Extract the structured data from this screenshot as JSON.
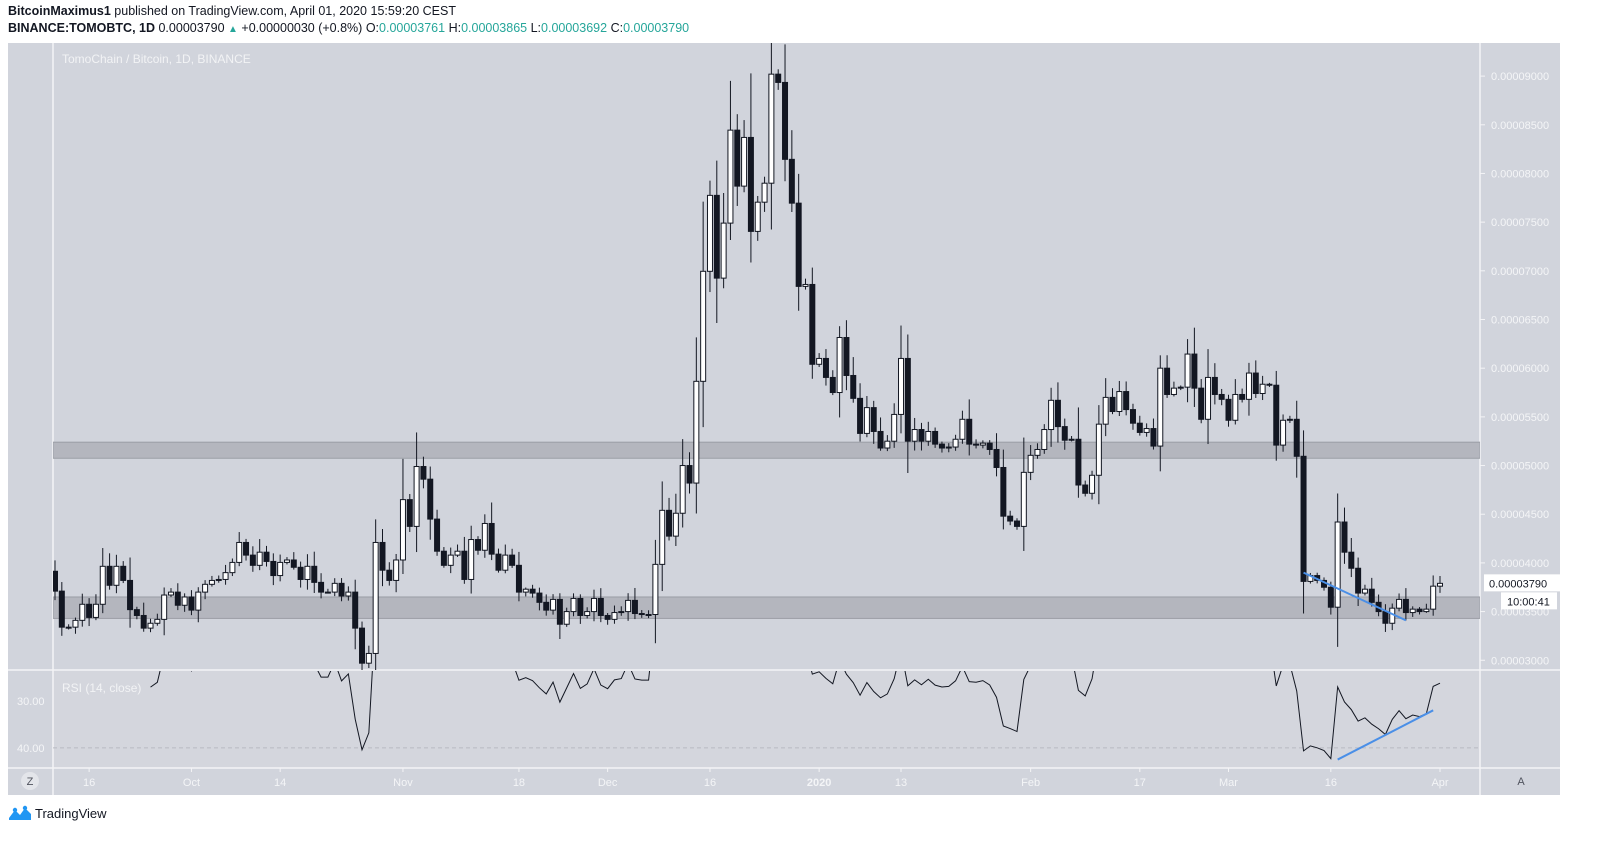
{
  "header": {
    "author": "BitcoinMaximus1",
    "published": "published on TradingView.com, April 01, 2020 15:59:20 CEST",
    "symbol": "BINANCE:TOMOBTC, 1D",
    "last": "0.00003790",
    "change": "+0.00000030 (+0.8%)",
    "change_direction": "up",
    "o_label": "O:",
    "o": "0.00003761",
    "h_label": "H:",
    "h": "0.00003865",
    "l_label": "L:",
    "l": "0.00003692",
    "c_label": "C:",
    "c": "0.00003790"
  },
  "watermark": "TomoChain / Bitcoin, 1D, BINANCE",
  "price_axis": {
    "ticks": [
      "0.00009000",
      "0.00008500",
      "0.00008000",
      "0.00007500",
      "0.00007000",
      "0.00006500",
      "0.00006000",
      "0.00005500",
      "0.00005000",
      "0.00004500",
      "0.00004000",
      "0.00003500",
      "0.00003000"
    ],
    "current_price_label": "0.00003790",
    "countdown": "10:00:41"
  },
  "rsi": {
    "label": "RSI (14, close)",
    "ticks": [
      "40.00",
      "30.00"
    ]
  },
  "time_axis": {
    "ticks": [
      {
        "label": "16",
        "date": "2019-09-16"
      },
      {
        "label": "Oct",
        "date": "2019-10-01"
      },
      {
        "label": "14",
        "date": "2019-10-14"
      },
      {
        "label": "Nov",
        "date": "2019-11-01"
      },
      {
        "label": "18",
        "date": "2019-11-18"
      },
      {
        "label": "Dec",
        "date": "2019-12-01"
      },
      {
        "label": "16",
        "date": "2019-12-16"
      },
      {
        "label": "2020",
        "date": "2020-01-01"
      },
      {
        "label": "13",
        "date": "2020-01-13"
      },
      {
        "label": "Feb",
        "date": "2020-02-01"
      },
      {
        "label": "17",
        "date": "2020-02-17"
      },
      {
        "label": "Mar",
        "date": "2020-03-01"
      },
      {
        "label": "16",
        "date": "2020-03-16"
      },
      {
        "label": "Apr",
        "date": "2020-04-01"
      }
    ],
    "left_button": "Z",
    "right_button": "A"
  },
  "footer": {
    "brand": "TradingView"
  },
  "colors": {
    "background": "#d1d4dc",
    "up_body": "#ffffff",
    "down_body": "#131722",
    "zone": "#a9acb4",
    "trendline": "#4a8fe7",
    "accent_teal": "#26a69a",
    "brand_blue": "#2196f3"
  },
  "chart_data": {
    "type": "candlestick",
    "interval": "1D",
    "xlim": [
      "2019-09-11",
      "2020-04-01"
    ],
    "ylim": [
      2.9e-05,
      9.34e-05
    ],
    "first_open": 3.914e-05,
    "last_candle": {
      "open": 3.761e-05,
      "high": 3.865e-05,
      "low": 3.692e-05,
      "close": 3.79e-05
    },
    "close": [
      3.71e-05,
      3.34e-05,
      3.34e-05,
      3.41e-05,
      3.575e-05,
      3.44e-05,
      3.575e-05,
      3.965e-05,
      3.77e-05,
      3.965e-05,
      3.82e-05,
      3.52e-05,
      3.46e-05,
      3.33e-05,
      3.38e-05,
      3.42e-05,
      3.67e-05,
      3.7e-05,
      3.565e-05,
      3.65e-05,
      3.515e-05,
      3.7e-05,
      3.78e-05,
      3.82e-05,
      3.83e-05,
      3.9e-05,
      4.005e-05,
      4.21e-05,
      4.08e-05,
      3.975e-05,
      4.11e-05,
      4.015e-05,
      3.87e-05,
      4.005e-05,
      4.03e-05,
      3.955e-05,
      3.83e-05,
      3.965e-05,
      3.8e-05,
      3.7e-05,
      3.7e-05,
      3.79e-05,
      3.66e-05,
      3.7e-05,
      3.33e-05,
      2.97e-05,
      3.07e-05,
      4.21e-05,
      3.925e-05,
      3.82e-05,
      4.03e-05,
      4.65e-05,
      4.375e-05,
      4.99e-05,
      4.86e-05,
      4.45e-05,
      4.12e-05,
      3.975e-05,
      4.08e-05,
      4.12e-05,
      3.83e-05,
      4.24e-05,
      4.13e-05,
      4.405e-05,
      4.09e-05,
      3.925e-05,
      4.08e-05,
      3.975e-05,
      3.7e-05,
      3.73e-05,
      3.69e-05,
      3.595e-05,
      3.515e-05,
      3.625e-05,
      3.37e-05,
      3.5e-05,
      3.635e-05,
      3.46e-05,
      3.5e-05,
      3.635e-05,
      3.46e-05,
      3.42e-05,
      3.49e-05,
      3.5e-05,
      3.615e-05,
      3.48e-05,
      3.47e-05,
      3.47e-05,
      3.985e-05,
      4.54e-05,
      4.275e-05,
      4.51e-05,
      5e-05,
      4.82e-05,
      5.865e-05,
      6.995e-05,
      7.775e-05,
      6.925e-05,
      7.49e-05,
      8.445e-05,
      7.87e-05,
      8.37e-05,
      7.405e-05,
      7.705e-05,
      7.9e-05,
      9.02e-05,
      8.935e-05,
      8.145e-05,
      7.695e-05,
      6.84e-05,
      6.86e-05,
      6.04e-05,
      6.1e-05,
      5.905e-05,
      5.75e-05,
      6.315e-05,
      5.925e-05,
      5.69e-05,
      5.33e-05,
      5.595e-05,
      5.35e-05,
      5.18e-05,
      5.25e-05,
      5.525e-05,
      6.1e-05,
      5.25e-05,
      5.37e-05,
      5.25e-05,
      5.35e-05,
      5.22e-05,
      5.18e-05,
      5.19e-05,
      5.27e-05,
      5.475e-05,
      5.22e-05,
      5.21e-05,
      5.23e-05,
      5.165e-05,
      4.98e-05,
      4.48e-05,
      4.43e-05,
      4.375e-05,
      4.93e-05,
      5.105e-05,
      5.165e-05,
      5.37e-05,
      5.67e-05,
      5.4e-05,
      5.26e-05,
      5.27e-05,
      4.8e-05,
      4.715e-05,
      4.9e-05,
      5.425e-05,
      5.7e-05,
      5.555e-05,
      5.76e-05,
      5.575e-05,
      5.435e-05,
      5.34e-05,
      5.38e-05,
      5.2e-05,
      6e-05,
      5.73e-05,
      5.795e-05,
      5.805e-05,
      6.145e-05,
      5.795e-05,
      5.475e-05,
      5.905e-05,
      5.73e-05,
      5.68e-05,
      5.465e-05,
      5.73e-05,
      5.68e-05,
      5.95e-05,
      5.74e-05,
      5.835e-05,
      5.825e-05,
      5.21e-05,
      5.465e-05,
      5.475e-05,
      5.095e-05,
      3.81e-05,
      3.87e-05,
      3.82e-05,
      3.75e-05,
      3.545e-05,
      4.42e-05,
      4.11e-05,
      3.945e-05,
      3.69e-05,
      3.73e-05,
      3.595e-05,
      3.5e-05,
      3.38e-05,
      3.535e-05,
      3.625e-05,
      3.49e-05,
      3.525e-05,
      3.5e-05,
      3.525e-05,
      3.761e-05,
      3.79e-05
    ],
    "zones": [
      {
        "from": 5.075e-05,
        "to": 5.24e-05
      },
      {
        "from": 3.43e-05,
        "to": 3.65e-05
      }
    ],
    "price_trendline": [
      {
        "date": "2020-03-12",
        "price": 3.9e-05
      },
      {
        "date": "2020-03-27",
        "price": 3.41e-05
      }
    ],
    "rsi_period": 14,
    "rsi_ylim": [
      25.7,
      46.6
    ],
    "rsi_levels": [
      30,
      40
    ],
    "rsi_trendline": [
      {
        "date": "2020-03-17",
        "value": 27.5
      },
      {
        "date": "2020-03-31",
        "value": 38
      }
    ]
  }
}
